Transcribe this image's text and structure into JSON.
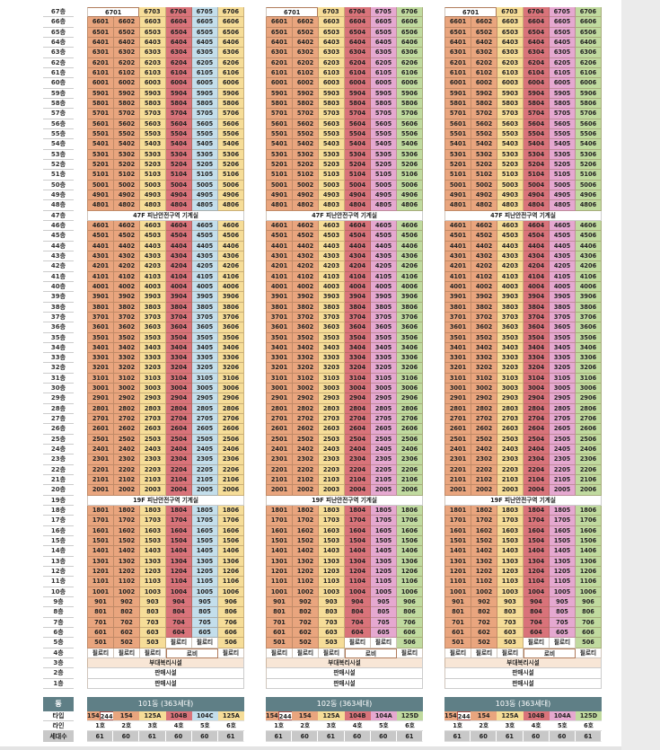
{
  "colors": {
    "orange": "#E9A57E",
    "yellow": "#F6DD98",
    "red": "#D9737A",
    "blue": "#C3DEEB",
    "pink": "#E5A8D0",
    "green": "#C0DA9F",
    "beige": "#F8E6D6",
    "header": "#5F7F86"
  },
  "floors": [
    {
      "label": "67층",
      "cells": [
        "6701",
        "",
        "6703",
        "6704",
        "6705",
        "6706"
      ]
    },
    {
      "label": "66층",
      "cells": [
        "6601",
        "6602",
        "6603",
        "6604",
        "6605",
        "6606"
      ]
    },
    {
      "label": "65층",
      "cells": [
        "6501",
        "6502",
        "6503",
        "6504",
        "6505",
        "6506"
      ]
    },
    {
      "label": "64층",
      "cells": [
        "6401",
        "6402",
        "6403",
        "6404",
        "6405",
        "6406"
      ]
    },
    {
      "label": "63층",
      "cells": [
        "6301",
        "6302",
        "6303",
        "6304",
        "6305",
        "6306"
      ]
    },
    {
      "label": "62층",
      "cells": [
        "6201",
        "6202",
        "6203",
        "6204",
        "6205",
        "6206"
      ]
    },
    {
      "label": "61층",
      "cells": [
        "6101",
        "6102",
        "6103",
        "6104",
        "6105",
        "6106"
      ]
    },
    {
      "label": "60층",
      "cells": [
        "6001",
        "6002",
        "6003",
        "6004",
        "6005",
        "6006"
      ]
    },
    {
      "label": "59층",
      "cells": [
        "5901",
        "5902",
        "5903",
        "5904",
        "5905",
        "5906"
      ]
    },
    {
      "label": "58층",
      "cells": [
        "5801",
        "5802",
        "5803",
        "5804",
        "5805",
        "5806"
      ]
    },
    {
      "label": "57층",
      "cells": [
        "5701",
        "5702",
        "5703",
        "5704",
        "5705",
        "5706"
      ]
    },
    {
      "label": "56층",
      "cells": [
        "5601",
        "5602",
        "5603",
        "5604",
        "5605",
        "5606"
      ]
    },
    {
      "label": "55층",
      "cells": [
        "5501",
        "5502",
        "5503",
        "5504",
        "5505",
        "5506"
      ]
    },
    {
      "label": "54층",
      "cells": [
        "5401",
        "5402",
        "5403",
        "5404",
        "5405",
        "5406"
      ]
    },
    {
      "label": "53층",
      "cells": [
        "5301",
        "5302",
        "5303",
        "5304",
        "5305",
        "5306"
      ]
    },
    {
      "label": "52층",
      "cells": [
        "5201",
        "5202",
        "5203",
        "5204",
        "5205",
        "5206"
      ]
    },
    {
      "label": "51층",
      "cells": [
        "5101",
        "5102",
        "5103",
        "5104",
        "5105",
        "5106"
      ]
    },
    {
      "label": "50층",
      "cells": [
        "5001",
        "5002",
        "5003",
        "5004",
        "5005",
        "5006"
      ]
    },
    {
      "label": "49층",
      "cells": [
        "4901",
        "4902",
        "4903",
        "4904",
        "4905",
        "4906"
      ]
    },
    {
      "label": "48층",
      "cells": [
        "4801",
        "4802",
        "4803",
        "4804",
        "4805",
        "4806"
      ]
    },
    {
      "label": "47층",
      "full": "47F 피난안전구역 기계실"
    },
    {
      "label": "46층",
      "cells": [
        "4601",
        "4602",
        "4603",
        "4604",
        "4605",
        "4606"
      ]
    },
    {
      "label": "45층",
      "cells": [
        "4501",
        "4502",
        "4503",
        "4504",
        "4505",
        "4506"
      ]
    },
    {
      "label": "44층",
      "cells": [
        "4401",
        "4402",
        "4403",
        "4404",
        "4405",
        "4406"
      ]
    },
    {
      "label": "43층",
      "cells": [
        "4301",
        "4302",
        "4303",
        "4304",
        "4305",
        "4306"
      ]
    },
    {
      "label": "42층",
      "cells": [
        "4201",
        "4202",
        "4203",
        "4204",
        "4205",
        "4206"
      ]
    },
    {
      "label": "41층",
      "cells": [
        "4101",
        "4102",
        "4103",
        "4104",
        "4105",
        "4106"
      ]
    },
    {
      "label": "40층",
      "cells": [
        "4001",
        "4002",
        "4003",
        "4004",
        "4005",
        "4006"
      ]
    },
    {
      "label": "39층",
      "cells": [
        "3901",
        "3902",
        "3903",
        "3904",
        "3905",
        "3906"
      ]
    },
    {
      "label": "38층",
      "cells": [
        "3801",
        "3802",
        "3803",
        "3804",
        "3805",
        "3806"
      ]
    },
    {
      "label": "37층",
      "cells": [
        "3701",
        "3702",
        "3703",
        "3704",
        "3705",
        "3706"
      ]
    },
    {
      "label": "36층",
      "cells": [
        "3601",
        "3602",
        "3603",
        "3604",
        "3605",
        "3606"
      ]
    },
    {
      "label": "35층",
      "cells": [
        "3501",
        "3502",
        "3503",
        "3504",
        "3505",
        "3506"
      ]
    },
    {
      "label": "34층",
      "cells": [
        "3401",
        "3402",
        "3403",
        "3404",
        "3405",
        "3406"
      ]
    },
    {
      "label": "33층",
      "cells": [
        "3301",
        "3302",
        "3303",
        "3304",
        "3305",
        "3306"
      ]
    },
    {
      "label": "32층",
      "cells": [
        "3201",
        "3202",
        "3203",
        "3204",
        "3205",
        "3206"
      ]
    },
    {
      "label": "31층",
      "cells": [
        "3101",
        "3102",
        "3103",
        "3104",
        "3105",
        "3106"
      ]
    },
    {
      "label": "30층",
      "cells": [
        "3001",
        "3002",
        "3003",
        "3004",
        "3005",
        "3006"
      ]
    },
    {
      "label": "29층",
      "cells": [
        "2901",
        "2902",
        "2903",
        "2904",
        "2905",
        "2906"
      ]
    },
    {
      "label": "28층",
      "cells": [
        "2801",
        "2802",
        "2803",
        "2804",
        "2805",
        "2806"
      ]
    },
    {
      "label": "27층",
      "cells": [
        "2701",
        "2702",
        "2703",
        "2704",
        "2705",
        "2706"
      ]
    },
    {
      "label": "26층",
      "cells": [
        "2601",
        "2602",
        "2603",
        "2604",
        "2605",
        "2606"
      ]
    },
    {
      "label": "25층",
      "cells": [
        "2501",
        "2502",
        "2503",
        "2504",
        "2505",
        "2506"
      ]
    },
    {
      "label": "24층",
      "cells": [
        "2401",
        "2402",
        "2403",
        "2404",
        "2405",
        "2406"
      ]
    },
    {
      "label": "23층",
      "cells": [
        "2301",
        "2302",
        "2303",
        "2304",
        "2305",
        "2306"
      ]
    },
    {
      "label": "22층",
      "cells": [
        "2201",
        "2202",
        "2203",
        "2204",
        "2205",
        "2206"
      ]
    },
    {
      "label": "21층",
      "cells": [
        "2101",
        "2102",
        "2103",
        "2104",
        "2105",
        "2106"
      ]
    },
    {
      "label": "20층",
      "cells": [
        "2001",
        "2002",
        "2003",
        "2004",
        "2005",
        "2006"
      ]
    },
    {
      "label": "19층",
      "full": "19F 피난안전구역 기계실"
    },
    {
      "label": "18층",
      "cells": [
        "1801",
        "1802",
        "1803",
        "1804",
        "1805",
        "1806"
      ]
    },
    {
      "label": "17층",
      "cells": [
        "1701",
        "1702",
        "1703",
        "1704",
        "1705",
        "1706"
      ]
    },
    {
      "label": "16층",
      "cells": [
        "1601",
        "1602",
        "1603",
        "1604",
        "1605",
        "1606"
      ]
    },
    {
      "label": "15층",
      "cells": [
        "1501",
        "1502",
        "1503",
        "1504",
        "1505",
        "1506"
      ]
    },
    {
      "label": "14층",
      "cells": [
        "1401",
        "1402",
        "1403",
        "1404",
        "1405",
        "1406"
      ]
    },
    {
      "label": "13층",
      "cells": [
        "1301",
        "1302",
        "1303",
        "1304",
        "1305",
        "1306"
      ]
    },
    {
      "label": "12층",
      "cells": [
        "1201",
        "1202",
        "1203",
        "1204",
        "1205",
        "1206"
      ]
    },
    {
      "label": "11층",
      "cells": [
        "1101",
        "1102",
        "1103",
        "1104",
        "1105",
        "1106"
      ]
    },
    {
      "label": "10층",
      "cells": [
        "1001",
        "1002",
        "1003",
        "1004",
        "1005",
        "1006"
      ]
    },
    {
      "label": "9층",
      "cells": [
        "901",
        "902",
        "903",
        "904",
        "905",
        "906"
      ]
    },
    {
      "label": "8층",
      "cells": [
        "801",
        "802",
        "803",
        "804",
        "805",
        "806"
      ]
    },
    {
      "label": "7층",
      "cells": [
        "701",
        "702",
        "703",
        "704",
        "705",
        "706"
      ]
    },
    {
      "label": "6층",
      "cells": [
        "601",
        "602",
        "603",
        "604",
        "605",
        "606"
      ]
    },
    {
      "label": "5층",
      "cells": [
        "501",
        "502",
        "503",
        "필로티",
        "필로티",
        "506"
      ]
    },
    {
      "label": "4층",
      "cells": [
        "필로티",
        "필로티",
        "필로티",
        "로비",
        "",
        "필로티"
      ]
    },
    {
      "label": "3층",
      "full": "부대복리시설",
      "beige": true
    },
    {
      "label": "2층",
      "full": "판매시설"
    },
    {
      "label": "1층",
      "full": "판매시설"
    }
  ],
  "legend": {
    "dong_label": "동",
    "type_label": "타입",
    "line_label": "라인",
    "count_label": "세대수"
  },
  "buildings": [
    {
      "title": "101동 (363세대)",
      "col_colors": [
        "orange",
        "orange",
        "yellow",
        "red",
        "blue",
        "yellow"
      ],
      "type_first": [
        "154",
        "244"
      ],
      "types": [
        "154",
        "125A",
        "104B",
        "104C",
        "125A"
      ],
      "lines": [
        "1호",
        "2호",
        "3호",
        "4호",
        "5호",
        "6호"
      ],
      "counts": [
        "61",
        "60",
        "61",
        "60",
        "60",
        "61"
      ]
    },
    {
      "title": "102동 (363세대)",
      "col_colors": [
        "orange",
        "orange",
        "yellow",
        "red",
        "pink",
        "green"
      ],
      "type_first": [
        "154",
        "244"
      ],
      "types": [
        "154",
        "125A",
        "104B",
        "104A",
        "125D"
      ],
      "lines": [
        "1호",
        "2호",
        "3호",
        "4호",
        "5호",
        "6호"
      ],
      "counts": [
        "61",
        "60",
        "61",
        "60",
        "60",
        "61"
      ]
    },
    {
      "title": "103동 (363세대)",
      "col_colors": [
        "orange",
        "orange",
        "yellow",
        "red",
        "pink",
        "green"
      ],
      "type_first": [
        "154",
        "244"
      ],
      "types": [
        "154",
        "125A",
        "104B",
        "104A",
        "125D"
      ],
      "lines": [
        "1호",
        "2호",
        "3호",
        "4호",
        "5호",
        "6호"
      ],
      "counts": [
        "61",
        "60",
        "61",
        "60",
        "60",
        "61"
      ]
    }
  ]
}
